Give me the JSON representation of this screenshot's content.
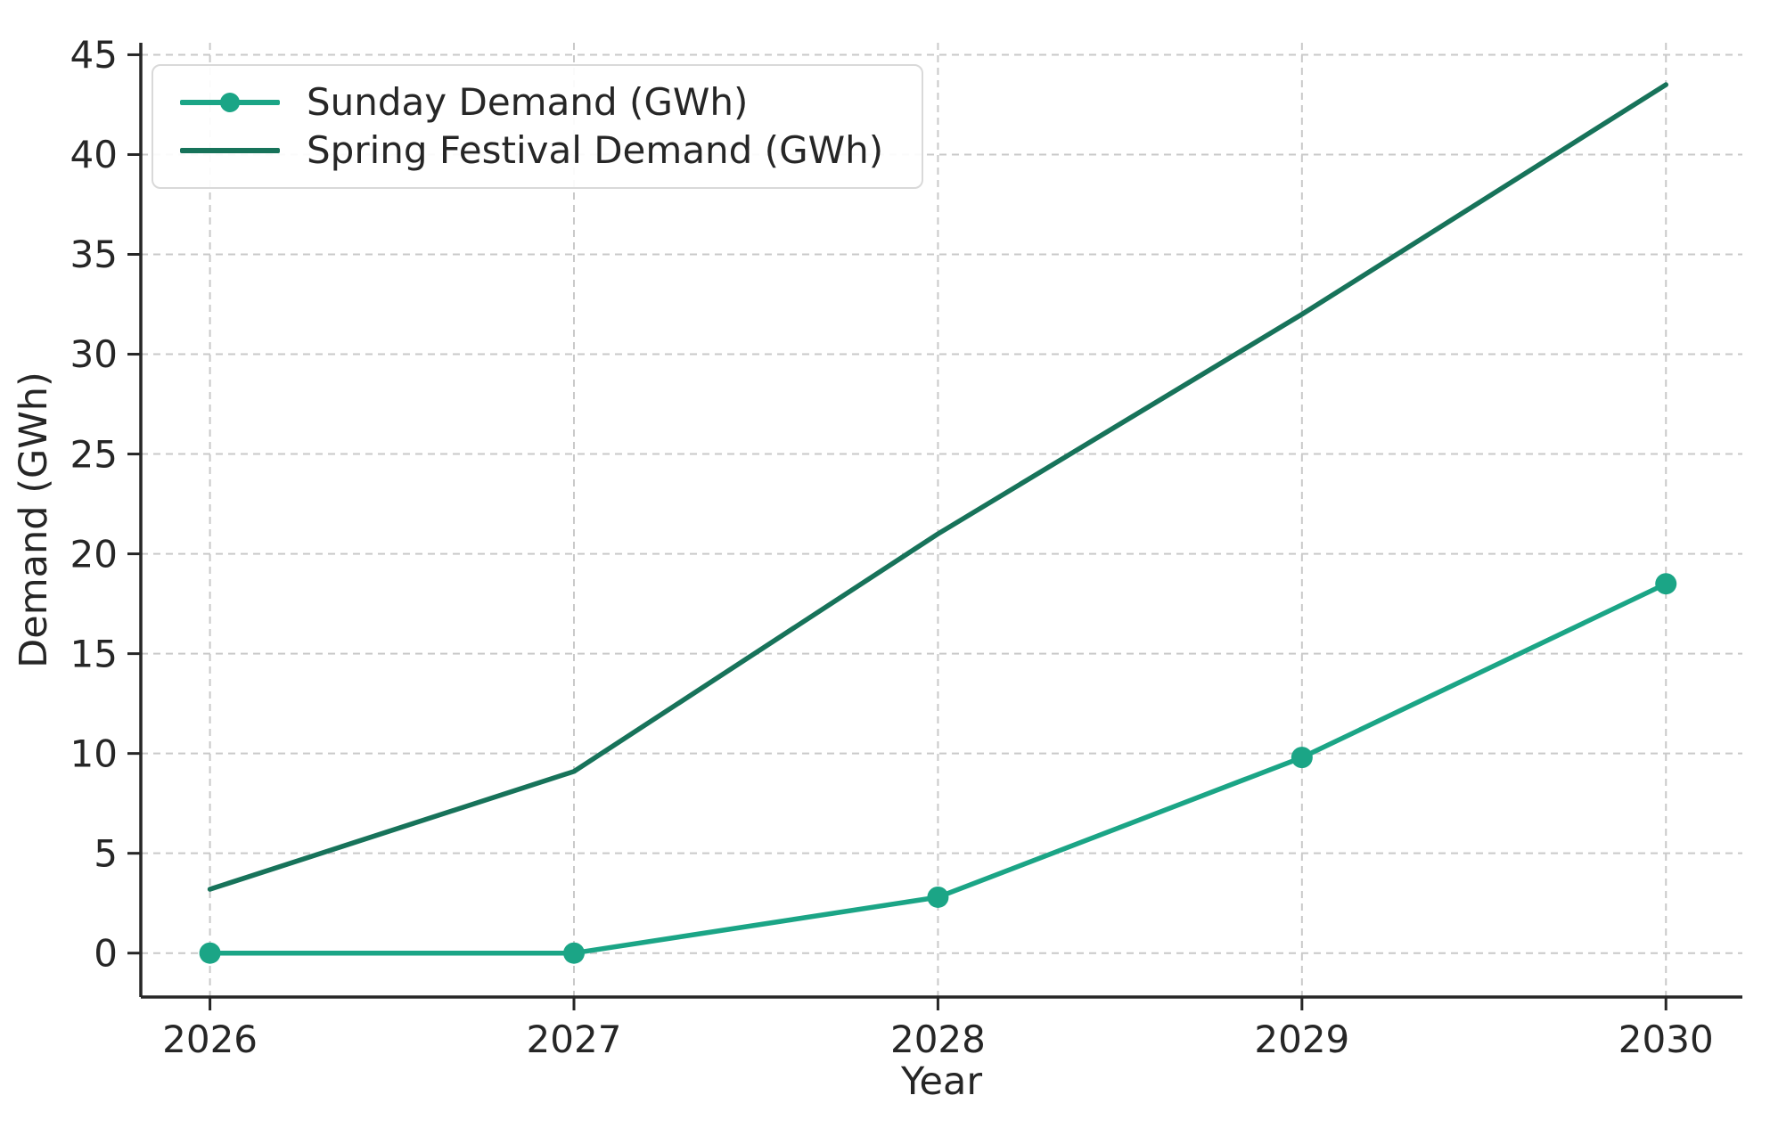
{
  "chart_data": {
    "type": "line",
    "title": "",
    "xlabel": "Year",
    "ylabel": "Demand (GWh)",
    "x": [
      2026,
      2027,
      2028,
      2029,
      2030
    ],
    "x_tick_labels": [
      "2026",
      "2027",
      "2028",
      "2029",
      "2030"
    ],
    "series": [
      {
        "name": "Sunday Demand (GWh)",
        "values": [
          0,
          0,
          2.8,
          9.8,
          18.5
        ],
        "color": "#1ba586",
        "marker": true
      },
      {
        "name": "Spring Festival Demand (GWh)",
        "values": [
          3.2,
          9.1,
          21.0,
          32.0,
          43.5
        ],
        "color": "#17735a",
        "marker": false
      }
    ],
    "yticks": [
      0,
      5,
      10,
      15,
      20,
      25,
      30,
      35,
      40,
      45
    ],
    "ylim": [
      -2.2,
      45.6
    ],
    "xlim": [
      2025.81,
      2030.21
    ],
    "grid": "dashed-both-axes",
    "grid_color": "#c9c9c9",
    "spine_color": "#262626",
    "text_color": "#262626",
    "legend_position": "upper-left"
  }
}
